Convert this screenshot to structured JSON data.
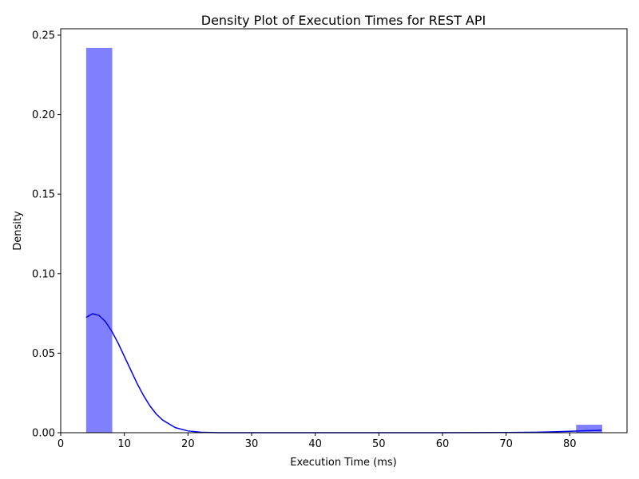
{
  "chart_data": {
    "type": "bar",
    "title": "Density Plot of Execution Times for REST API",
    "xlabel": "Execution Time (ms)",
    "ylabel": "Density",
    "xlim": [
      0,
      89
    ],
    "ylim": [
      0,
      0.254
    ],
    "xticks": [
      0,
      10,
      20,
      30,
      40,
      50,
      60,
      70,
      80
    ],
    "yticks": [
      0.0,
      0.05,
      0.1,
      0.15,
      0.2,
      0.25
    ],
    "ytick_labels": [
      "0.00",
      "0.05",
      "0.10",
      "0.15",
      "0.20",
      "0.25"
    ],
    "grid": false,
    "legend": "none",
    "histogram": {
      "color": "#8080ff",
      "bins": [
        {
          "x0": 4,
          "x1": 8.1,
          "density": 0.242
        },
        {
          "x0": 81,
          "x1": 85.1,
          "density": 0.005
        }
      ]
    },
    "kde": {
      "color": "#0000ee",
      "x": [
        4,
        5,
        6,
        7,
        8,
        9,
        10,
        11,
        12,
        13,
        14,
        15,
        16,
        18,
        20,
        22,
        25,
        30,
        40,
        50,
        60,
        70,
        75,
        78,
        80,
        82,
        84,
        85
      ],
      "y": [
        0.0725,
        0.0748,
        0.0738,
        0.07,
        0.064,
        0.0565,
        0.048,
        0.0395,
        0.031,
        0.0235,
        0.017,
        0.0118,
        0.008,
        0.0032,
        0.0011,
        0.0003,
        0.0,
        0.0,
        0.0,
        0.0,
        0.0,
        0.0001,
        0.0003,
        0.0006,
        0.0009,
        0.0012,
        0.0014,
        0.0015
      ]
    }
  }
}
